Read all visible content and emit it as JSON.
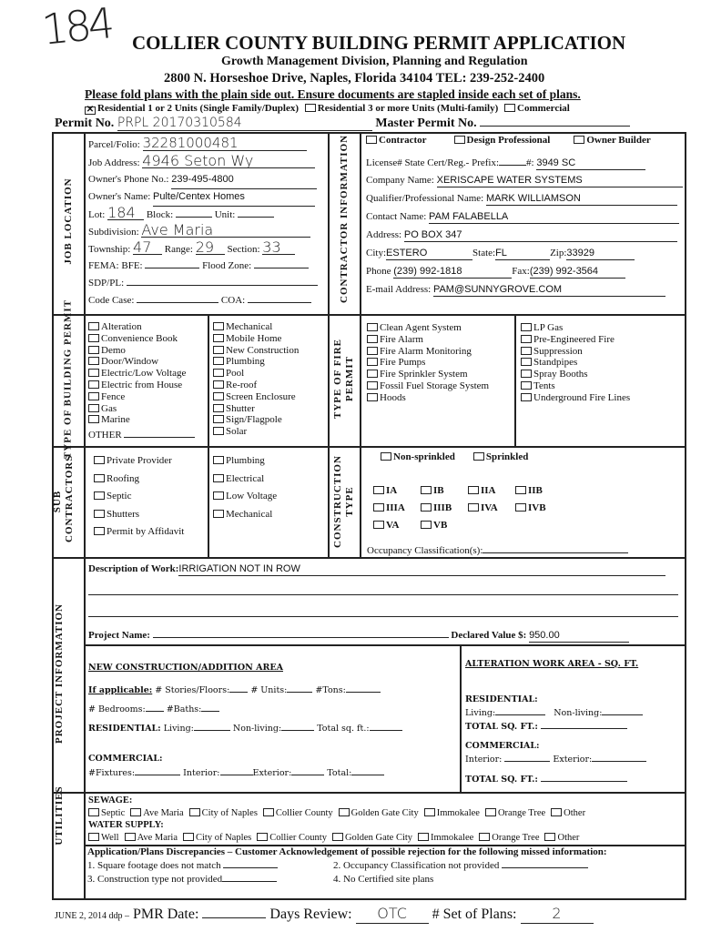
{
  "handwritten_number": "184",
  "header": {
    "title": "COLLIER COUNTY BUILDING PERMIT APPLICATION",
    "subtitle": "Growth Management Division, Planning and Regulation",
    "address": "2800 N. Horseshoe Drive, Naples, Florida 34104 TEL: 239-252-2400",
    "notice": "Please fold plans with the plain side out. Ensure documents are stapled inside each set of plans."
  },
  "occupancy": [
    {
      "label": "Residential 1 or 2 Units (Single Family/Duplex)",
      "checked": true
    },
    {
      "label": "Residential 3 or more Units (Multi-family)",
      "checked": false
    },
    {
      "label": "Commercial",
      "checked": false
    }
  ],
  "permit": {
    "label": "Permit No.",
    "value": "PRPL 20170310584",
    "master_label": "Master Permit No.",
    "master_value": ""
  },
  "job_location": {
    "section_label": "JOB LOCATION",
    "parcel_label": "Parcel/Folio:",
    "parcel_value": "32281000481",
    "address_label": "Job Address:",
    "address_value": "4946 Seton Wy",
    "phone_label": "Owner's Phone No.:",
    "phone_value": "239-495-4800",
    "owner_label": "Owner's Name:",
    "owner_value": "Pulte/Centex Homes",
    "lot_label": "Lot:",
    "lot_value": "184",
    "block_label": "Block:",
    "unit_label": "Unit:",
    "subdivision_label": "Subdivision:",
    "subdivision_value": "Ave Maria",
    "township_label": "Township:",
    "township_value": "47",
    "range_label": "Range:",
    "range_value": "29",
    "section_label2": "Section:",
    "section_value": "33",
    "fema_label": "FEMA:  BFE:",
    "flood_label": "Flood Zone:",
    "sdp_label": "SDP/PL:",
    "code_label": "Code Case:",
    "coa_label": "COA:"
  },
  "contractor": {
    "section_label": "CONTRACTOR INFORMATION",
    "types": [
      "Contractor",
      "Design Professional",
      "Owner Builder"
    ],
    "license_label": "License# State Cert/Reg.- Prefix:",
    "license_num_label": "#:",
    "license_value": "3949 SC",
    "company_label": "Company Name:",
    "company_value": "XERISCAPE WATER SYSTEMS",
    "qualifier_label": "Qualifier/Professional Name:",
    "qualifier_value": "MARK WILLIAMSON",
    "contact_label": "Contact Name:",
    "contact_value": "PAM FALABELLA",
    "address_label": "Address:",
    "address_value": "PO BOX 347",
    "city_label": "City:",
    "city_value": "ESTERO",
    "state_label": "State:",
    "state_value": "FL",
    "zip_label": "Zip:",
    "zip_value": "33929",
    "phone_label": "Phone",
    "phone_value": "(239) 992-1818",
    "fax_label": "Fax:",
    "fax_value": "(239) 992-3564",
    "email_label": "E-mail Address:",
    "email_value": "PAM@SUNNYGROVE.COM"
  },
  "building_permit": {
    "section_label": "TYPE OF BUILDING PERMIT",
    "col1": [
      "Alteration",
      "Convenience Book",
      "Demo",
      "Door/Window",
      "Electric/Low Voltage",
      "Electric from House",
      "Fence",
      "Gas",
      "Marine"
    ],
    "other_label": "OTHER",
    "col2": [
      "Mechanical",
      "Mobile Home",
      "New Construction",
      "Plumbing",
      "Pool",
      "Re-roof",
      "Screen Enclosure",
      "Shutter",
      "Sign/Flagpole",
      "Solar"
    ]
  },
  "fire_permit": {
    "section_label": "TYPE OF FIRE PERMIT",
    "col1": [
      "Clean Agent System",
      "Fire Alarm",
      "Fire Alarm Monitoring",
      "Fire Pumps",
      "Fire Sprinkler System",
      "Fossil Fuel Storage System",
      "Hoods"
    ],
    "col2": [
      "LP Gas",
      "Pre-Engineered Fire",
      "Suppression",
      "Standpipes",
      "Spray Booths",
      "Tents",
      "Underground Fire Lines"
    ]
  },
  "sub_contractors": {
    "section_label": "SUB CONTRACTORS",
    "col1": [
      "Private Provider",
      "Roofing",
      "Septic",
      "Shutters",
      "Permit by Affidavit"
    ],
    "col2": [
      "Plumbing",
      "Electrical",
      "Low Voltage",
      "Mechanical"
    ]
  },
  "construction_type": {
    "section_label": "CONSTRUCTION TYPE",
    "sprinkler": [
      "Non-sprinkled",
      "Sprinkled"
    ],
    "types": [
      "IA",
      "IB",
      "IIA",
      "IIB",
      "IIIA",
      "IIIB",
      "IVA",
      "IVB",
      "VA",
      "VB"
    ],
    "occupancy_label": "Occupancy Classification(s):"
  },
  "project": {
    "section_label": "PROJECT INFORMATION",
    "description_label": "Description of Work:",
    "description_value": "IRRIGATION     NOT IN ROW",
    "project_name_label": "Project Name:",
    "declared_label": "Declared Value $:",
    "declared_value": "950.00",
    "new_construction": {
      "title": "NEW CONSTRUCTION/ADDITION AREA",
      "if_applicable": "If applicable:",
      "stories": "# Stories/Floors:",
      "units": "# Units:",
      "tons": "#Tons:",
      "bedrooms": "# Bedrooms:",
      "baths": "#Baths:",
      "residential": "RESIDENTIAL:",
      "living": "Living:",
      "nonliving": "Non-living:",
      "total_sqft": "Total sq. ft.:",
      "commercial": "COMMERCIAL:",
      "fixtures": "#Fixtures:",
      "interior": "Interior:",
      "exterior": "Exterior:",
      "total": "Total:"
    },
    "alteration": {
      "title": "ALTERATION WORK AREA - SQ. FT.",
      "residential": "RESIDENTIAL:",
      "living": "Living:",
      "nonliving": "Non-living:",
      "total_sqft": "TOTAL SQ. FT.:",
      "commercial": "COMMERCIAL:",
      "interior": "Interior:",
      "exterior": "Exterior:",
      "total_sqft2": "TOTAL SQ. FT.:"
    }
  },
  "utilities": {
    "section_label": "UTILITIES",
    "sewage_label": "SEWAGE:",
    "sewage": [
      "Septic",
      "Ave Maria",
      "City of Naples",
      "Collier County",
      "Golden Gate City",
      "Immokalee",
      "Orange Tree",
      "Other"
    ],
    "water_label": "WATER SUPPLY:",
    "water": [
      "Well",
      "Ave Maria",
      "City of Naples",
      "Collier County",
      "Golden Gate City",
      "Immokalee",
      "Orange Tree",
      "Other"
    ]
  },
  "discrepancies": {
    "title": "Application/Plans Discrepancies – Customer Acknowledgement of  possible rejection for the following missed information:",
    "items": [
      "1. Square footage does not match",
      "2. Occupancy Classification not provided",
      "3. Construction type not provided",
      "4. No Certified site plans"
    ]
  },
  "footer": {
    "revision": "JUNE 2, 2014 ddp –",
    "pmr_label": "PMR Date:",
    "pmr_value": "",
    "days_label": "Days Review:",
    "days_value": "OTC",
    "sets_label": "# Set of Plans:",
    "sets_value": "2"
  }
}
